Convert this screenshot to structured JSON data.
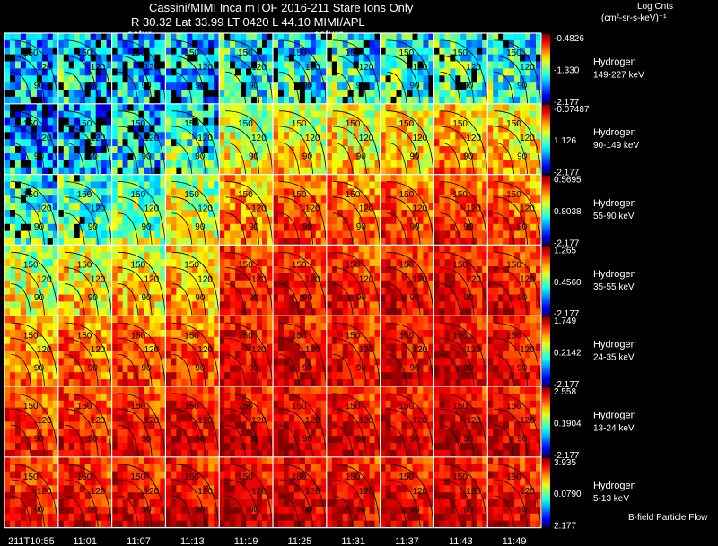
{
  "header": {
    "title": "Cassini/MIMI Inca mTOF  2016-211    Stare   Ions Only",
    "subtitle": "R          30.32  Lat 33.99  LT 0420  L          44.10   MIMI/APL",
    "units_title": "Log Cnts",
    "units_sub": "(cm²-sr-s-keV)⁻¹",
    "overlay_labels": [
      "satur",
      "saturn"
    ]
  },
  "footer": {
    "bfield_label": "B-field Particle Flow"
  },
  "chart_data": {
    "type": "heatmap",
    "title": "Cassini/MIMI Inca mTOF 2016-211 Stare Ions Only",
    "times": [
      "211T10:55",
      "11:01",
      "11:07",
      "11:13",
      "11:19",
      "11:25",
      "11:31",
      "11:37",
      "11:43",
      "11:49"
    ],
    "contour_labels": [
      "150",
      "120",
      "90"
    ],
    "colorbar_unit": "Log Cnts (cm²-sr-s-keV)⁻¹",
    "rows": [
      {
        "species": "Hydrogen",
        "energy": "149-227 keV",
        "cmax": "-0.4826",
        "cmid": "-1.330",
        "cmin": "-2.177",
        "intensity": [
          0.3,
          0.34,
          0.3,
          0.32,
          0.4,
          0.38,
          0.4,
          0.42,
          0.44,
          0.4
        ]
      },
      {
        "species": "Hydrogen",
        "energy": "90-149 keV",
        "cmax": "-0.07487",
        "cmid": "1.126",
        "cmin": "-2.177",
        "intensity": [
          0.28,
          0.3,
          0.32,
          0.42,
          0.58,
          0.62,
          0.64,
          0.66,
          0.7,
          0.66
        ]
      },
      {
        "species": "Hydrogen",
        "energy": "55-90 keV",
        "cmax": "0.5695",
        "cmid": "0.8038",
        "cmin": "-2.177",
        "intensity": [
          0.42,
          0.46,
          0.5,
          0.58,
          0.72,
          0.8,
          0.78,
          0.8,
          0.82,
          0.78
        ]
      },
      {
        "species": "Hydrogen",
        "energy": "35-55 keV",
        "cmax": "1.265",
        "cmid": "0.4560",
        "cmin": "-2.177",
        "intensity": [
          0.58,
          0.62,
          0.64,
          0.68,
          0.84,
          0.86,
          0.84,
          0.86,
          0.88,
          0.86
        ]
      },
      {
        "species": "Hydrogen",
        "energy": "24-35 keV",
        "cmax": "1.749",
        "cmid": "0.2142",
        "cmin": "-2.177",
        "intensity": [
          0.72,
          0.76,
          0.78,
          0.8,
          0.88,
          0.88,
          0.86,
          0.88,
          0.9,
          0.88
        ]
      },
      {
        "species": "Hydrogen",
        "energy": "13-24 keV",
        "cmax": "2.558",
        "cmid": "0.1904",
        "cmin": "-2.177",
        "intensity": [
          0.82,
          0.84,
          0.86,
          0.88,
          0.9,
          0.9,
          0.88,
          0.88,
          0.9,
          0.88
        ]
      },
      {
        "species": "Hydrogen",
        "energy": "5-13 keV",
        "cmax": "3.935",
        "cmid": "0.0790",
        "cmin": "2.177",
        "intensity": [
          0.84,
          0.86,
          0.88,
          0.88,
          0.9,
          0.9,
          0.88,
          0.88,
          0.9,
          0.88
        ]
      }
    ]
  }
}
